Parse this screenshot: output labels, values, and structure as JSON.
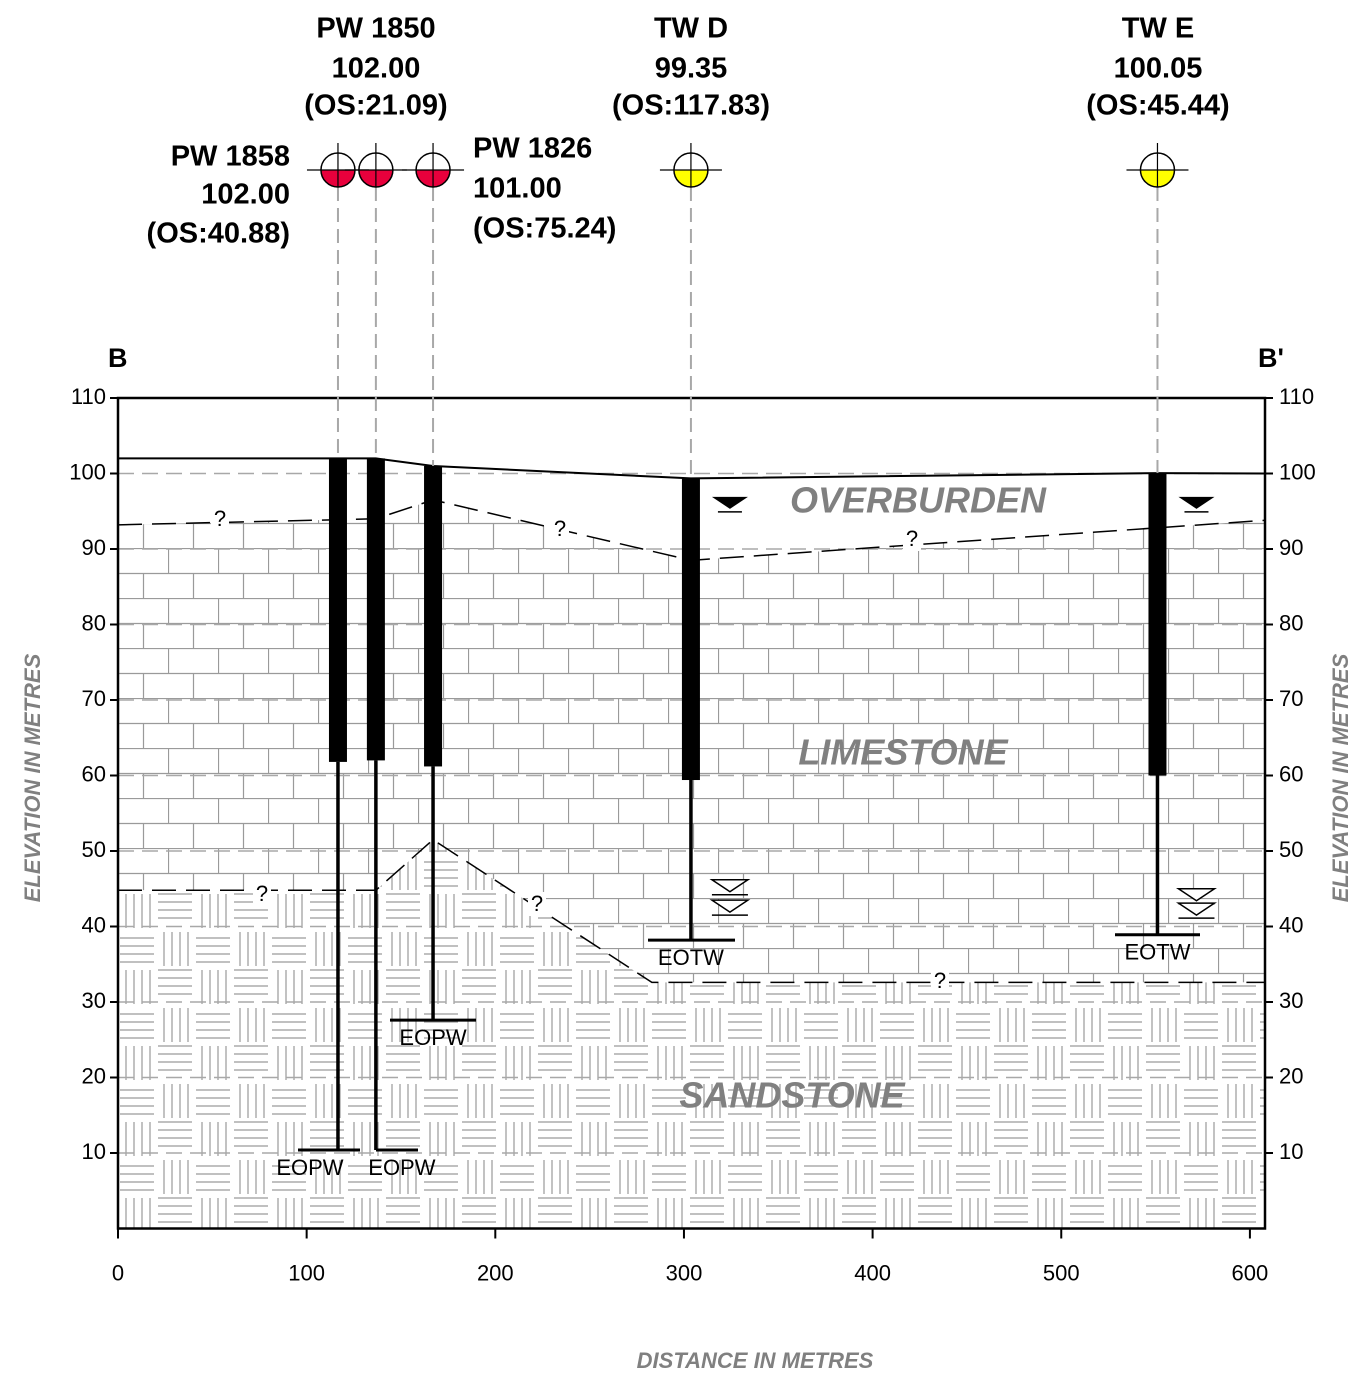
{
  "chart_data": {
    "type": "cross-section",
    "section_start": "B",
    "section_end": "B'",
    "x_label": "DISTANCE IN METRES",
    "y_label": "ELEVATION IN METRES",
    "xlim": [
      0,
      608
    ],
    "ylim": [
      0,
      110
    ],
    "xticks": [
      0,
      100,
      200,
      300,
      400,
      500,
      600
    ],
    "yticks": [
      10,
      20,
      30,
      40,
      50,
      60,
      70,
      80,
      90,
      100,
      110
    ],
    "grid": true,
    "units": [
      "OVERBURDEN",
      "LIMESTONE",
      "SANDSTONE"
    ],
    "uncertain_label": "?",
    "ground_surface": {
      "x": [
        0,
        136.7,
        167,
        303.7,
        551,
        608
      ],
      "y": [
        102,
        102,
        101,
        99.35,
        100.05,
        100
      ]
    },
    "overburden_base": {
      "x": [
        0,
        136.7,
        167,
        303.7,
        608
      ],
      "y": [
        93.2,
        94,
        96.5,
        88.5,
        93.8
      ]
    },
    "limestone_base": {
      "x": [
        0,
        136.7,
        167,
        283,
        608
      ],
      "y": [
        44.8,
        44.8,
        51.5,
        32.6,
        32.6
      ]
    },
    "wells": [
      {
        "name": "PW 1858",
        "elevation": {
          "value": 102,
          "label": "102.00"
        },
        "offset": "(OS:40.88)",
        "x": 116.6,
        "color": "#e8003c",
        "casing_bottom": 61.8,
        "bottom": 10.4,
        "end_label": "EOPW"
      },
      {
        "name": "PW 1850",
        "elevation": {
          "value": 102,
          "label": "102.00"
        },
        "offset": "(OS:21.09)",
        "x": 136.7,
        "color": "#e8003c",
        "casing_bottom": 62,
        "bottom": 10.4,
        "end_label": "EOPW"
      },
      {
        "name": "PW 1826",
        "elevation": {
          "value": 101,
          "label": "101.00"
        },
        "offset": "(OS:75.24)",
        "x": 167,
        "color": "#e8003c",
        "casing_bottom": 61.2,
        "bottom": 27.6,
        "end_label": "EOPW"
      },
      {
        "name": "TW D",
        "elevation": {
          "value": 99.35,
          "label": "99.35"
        },
        "offset": "(OS:117.83)",
        "x": 303.7,
        "color": "#ffff00",
        "casing_bottom": 59.4,
        "bottom": 38.2,
        "end_label": "EOTW",
        "water_level": 96.9,
        "deep_water_levels": [
          46.2,
          43.5
        ]
      },
      {
        "name": "TW E",
        "elevation": {
          "value": 100.05,
          "label": "100.05"
        },
        "offset": "(OS:45.44)",
        "x": 551,
        "color": "#ffff00",
        "casing_bottom": 60,
        "bottom": 38.9,
        "end_label": "EOTW",
        "water_level": 96.9,
        "deep_water_levels": [
          45,
          43.1
        ]
      }
    ]
  }
}
